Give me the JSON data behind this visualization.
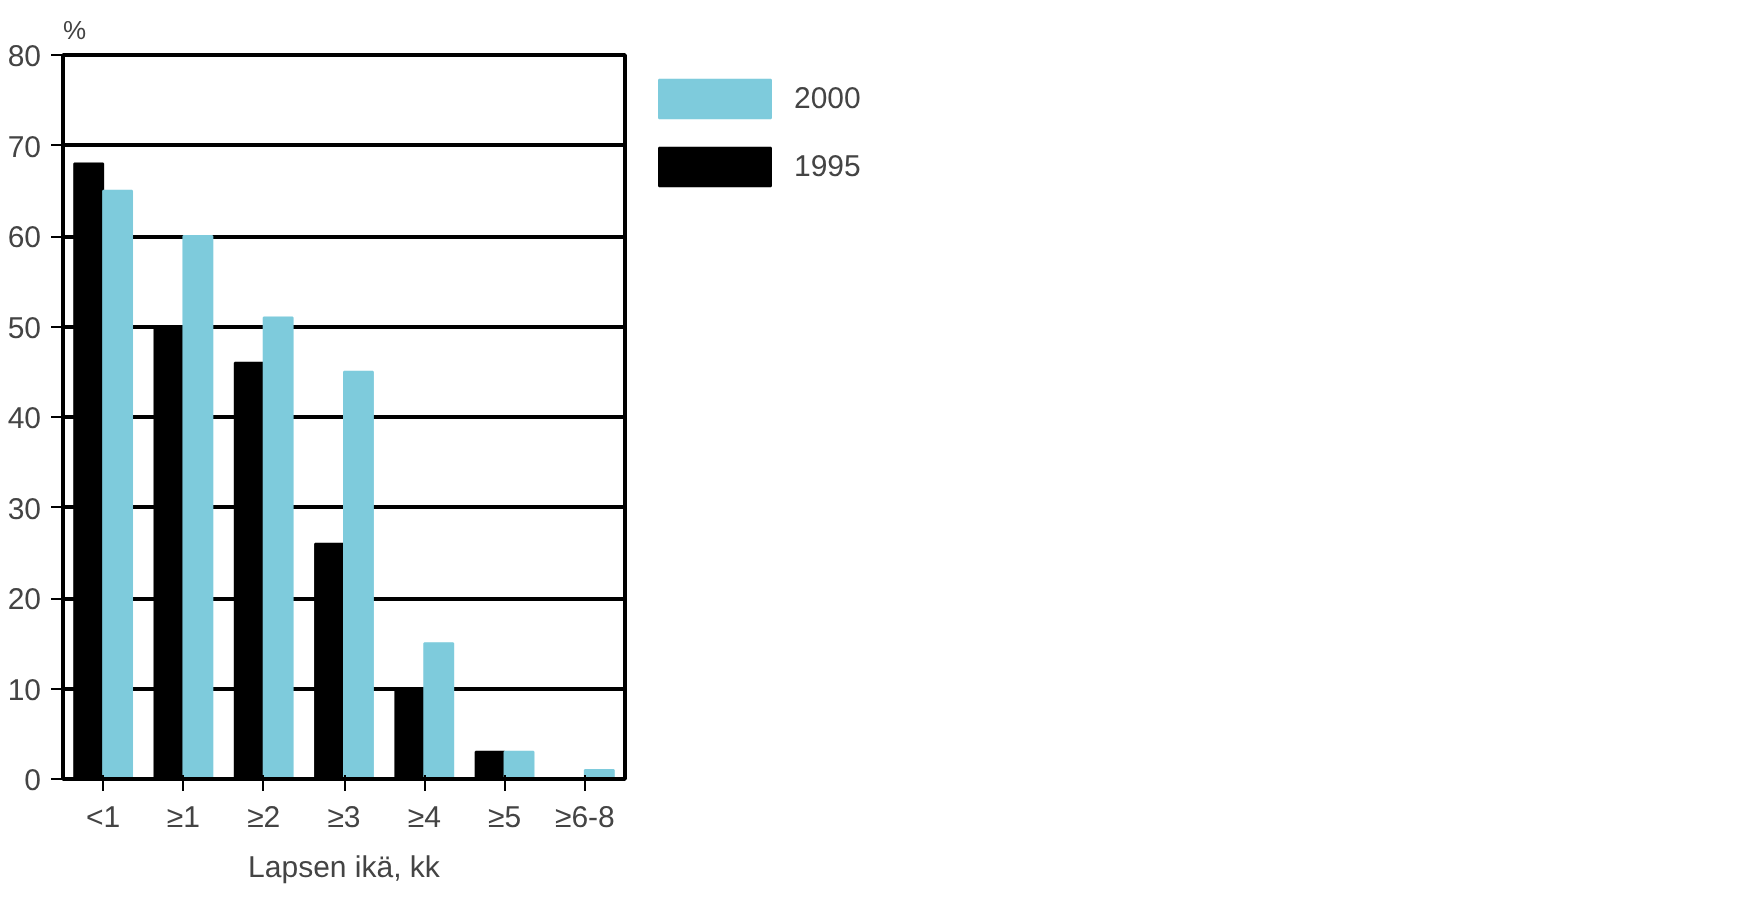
{
  "chart_data": {
    "type": "bar",
    "xlabel": "Lapsen ikä, kk",
    "ylabel": "%",
    "categories": [
      "<1",
      "≥1",
      "≥2",
      "≥3",
      "≥4",
      "≥5",
      "≥6-8"
    ],
    "series": [
      {
        "name": "1995",
        "color": "#000000",
        "values": [
          68,
          50,
          46,
          26,
          10,
          3,
          0
        ]
      },
      {
        "name": "2000",
        "color": "#7ecbdc",
        "values": [
          65,
          60,
          51,
          45,
          15,
          3,
          1
        ]
      }
    ],
    "ylim": [
      0,
      80
    ],
    "yticks": [
      0,
      10,
      20,
      30,
      40,
      50,
      60,
      70,
      80
    ],
    "grid": "y",
    "legend": "right"
  }
}
